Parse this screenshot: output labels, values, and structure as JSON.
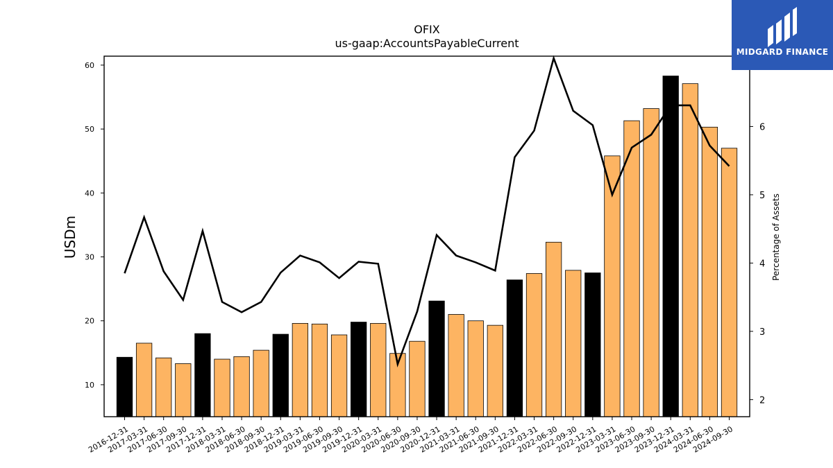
{
  "chart_data": {
    "type": "bar",
    "title": "OFIX",
    "subtitle": "us-gaap:AccountsPayableCurrent",
    "ylabel": "USDm",
    "y2label": "Percentage of Assets",
    "ylim": [
      5,
      61.4
    ],
    "y2lim": [
      1.75,
      7.03
    ],
    "yticks": [
      10,
      20,
      30,
      40,
      50,
      60
    ],
    "y2ticks": [
      2,
      3,
      4,
      5,
      6
    ],
    "categories": [
      "2016-12-31",
      "2017-03-31",
      "2017-06-30",
      "2017-09-30",
      "2017-12-31",
      "2018-03-31",
      "2018-06-30",
      "2018-09-30",
      "2018-12-31",
      "2019-03-31",
      "2019-06-30",
      "2019-09-30",
      "2019-12-31",
      "2020-03-31",
      "2020-06-30",
      "2020-09-30",
      "2020-12-31",
      "2021-03-31",
      "2021-06-30",
      "2021-09-30",
      "2021-12-31",
      "2022-03-31",
      "2022-06-30",
      "2022-09-30",
      "2022-12-31",
      "2023-03-31",
      "2023-06-30",
      "2023-09-30",
      "2023-12-31",
      "2024-03-31",
      "2024-06-30",
      "2024-09-30"
    ],
    "series": [
      {
        "type": "bar",
        "values": [
          14.3,
          16.5,
          14.2,
          13.3,
          18.0,
          14.0,
          14.4,
          15.4,
          17.9,
          19.6,
          19.5,
          17.8,
          19.8,
          19.6,
          14.9,
          16.8,
          23.1,
          21.0,
          20.0,
          19.3,
          26.4,
          27.4,
          32.3,
          27.9,
          27.5,
          45.8,
          51.3,
          53.2,
          58.3,
          57.1,
          50.3,
          47.0
        ],
        "colors": [
          "#000000",
          "#fdb462",
          "#fdb462",
          "#fdb462",
          "#000000",
          "#fdb462",
          "#fdb462",
          "#fdb462",
          "#000000",
          "#fdb462",
          "#fdb462",
          "#fdb462",
          "#000000",
          "#fdb462",
          "#fdb462",
          "#fdb462",
          "#000000",
          "#fdb462",
          "#fdb462",
          "#fdb462",
          "#000000",
          "#fdb462",
          "#fdb462",
          "#fdb462",
          "#000000",
          "#fdb462",
          "#fdb462",
          "#fdb462",
          "#000000",
          "#fdb462",
          "#fdb462",
          "#fdb462"
        ]
      },
      {
        "type": "line",
        "axis": "right",
        "color": "#000000",
        "values": [
          3.85,
          4.67,
          3.88,
          3.46,
          4.47,
          3.43,
          3.28,
          3.43,
          3.86,
          4.11,
          4.01,
          3.78,
          4.02,
          3.99,
          2.52,
          3.29,
          4.41,
          4.11,
          4.01,
          3.89,
          5.55,
          5.94,
          7.0,
          6.23,
          6.02,
          5.0,
          5.69,
          5.88,
          6.31,
          6.31,
          5.72,
          5.42
        ]
      }
    ],
    "grid": false
  },
  "logo": {
    "text": "MIDGARD FINANCE",
    "color": "#2b59b6"
  }
}
